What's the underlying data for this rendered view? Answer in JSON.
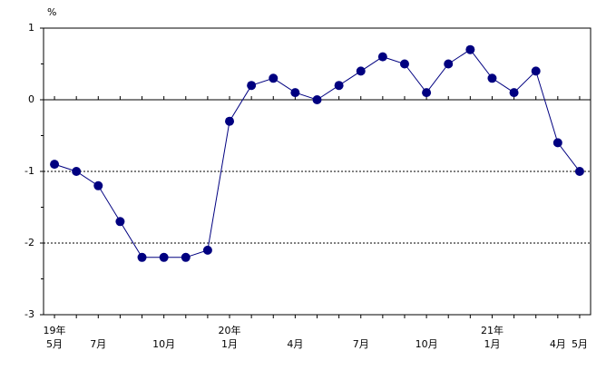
{
  "chart_data": {
    "type": "line",
    "y_unit": "%",
    "years": [
      "19年",
      null,
      null,
      null,
      null,
      null,
      null,
      null,
      "20年",
      null,
      null,
      null,
      null,
      null,
      null,
      null,
      null,
      null,
      null,
      null,
      "21年",
      null,
      null,
      null,
      null
    ],
    "categories": [
      "5月",
      null,
      "7月",
      null,
      null,
      "10月",
      null,
      null,
      "1月",
      null,
      null,
      "4月",
      null,
      null,
      "7月",
      null,
      null,
      "10月",
      null,
      null,
      "1月",
      null,
      null,
      "4月",
      "5月"
    ],
    "values": [
      -0.9,
      -1.0,
      -1.2,
      -1.7,
      -2.2,
      -2.2,
      -2.2,
      -2.1,
      -0.3,
      0.2,
      0.3,
      0.1,
      0.0,
      0.2,
      0.4,
      0.6,
      0.5,
      0.1,
      0.5,
      0.7,
      0.3,
      0.1,
      0.4,
      -0.6,
      -1.0
    ],
    "color": "#000080",
    "ylim": [
      -3,
      1
    ],
    "yticks": [
      -3,
      -2,
      -1,
      0,
      1
    ],
    "grid": true
  }
}
